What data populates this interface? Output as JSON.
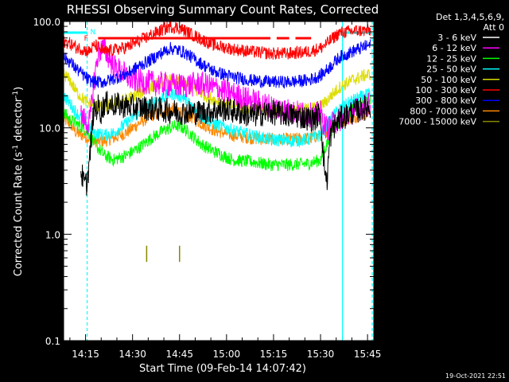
{
  "chart_data": {
    "type": "line",
    "title": "RHESSI Observing Summary Count Rates, Corrected",
    "xlabel": "Start Time (09-Feb-14 14:07:42)",
    "ylabel_main": "Corrected Count Rate (s",
    "ylabel_sup1": "-1",
    "ylabel_mid": " detector",
    "ylabel_sup2": "-1",
    "ylabel_end": ")",
    "y_scale": "log",
    "ylim": [
      0.1,
      100
    ],
    "xlim_minutes": [
      0,
      99
    ],
    "x_ticks": [
      {
        "m": 7,
        "label": "14:15"
      },
      {
        "m": 22,
        "label": "14:30"
      },
      {
        "m": 37,
        "label": "14:45"
      },
      {
        "m": 52,
        "label": "15:00"
      },
      {
        "m": 67,
        "label": "15:15"
      },
      {
        "m": 82,
        "label": "15:30"
      },
      {
        "m": 97,
        "label": "15:45"
      }
    ],
    "y_ticks": [
      {
        "v": 100,
        "label": "100.0"
      },
      {
        "v": 10,
        "label": "10.0"
      },
      {
        "v": 1,
        "label": "1.0"
      },
      {
        "v": 0.1,
        "label": "0.1"
      }
    ],
    "legend": {
      "header1": "Det 1,3,4,5,6,9,",
      "header2": "Att 0",
      "entries": [
        {
          "label": "3 - 6 keV",
          "color": "#ffffff"
        },
        {
          "label": "6 - 12 keV",
          "color": "#ff00ff"
        },
        {
          "label": "12 - 25 keV",
          "color": "#00ff00"
        },
        {
          "label": "25 - 50 keV",
          "color": "#00ffff"
        },
        {
          "label": "50 - 100 keV",
          "color": "#dddd00"
        },
        {
          "label": "100 - 300 keV",
          "color": "#ff0000"
        },
        {
          "label": "300 - 800 keV",
          "color": "#0000ff"
        },
        {
          "label": "800 - 7000 keV",
          "color": "#ff8800"
        },
        {
          "label": "7000 - 15000 keV",
          "color": "#888800"
        }
      ]
    },
    "flags": {
      "night_label": "N",
      "flare_label": "F"
    },
    "night_intervals_minutes": [
      [
        0,
        7.5
      ],
      [
        89,
        98.5
      ]
    ],
    "series": [
      {
        "name": "3 - 6 keV",
        "color": "#000000",
        "points": [
          [
            5.5,
            4
          ],
          [
            6.5,
            3
          ],
          [
            7.5,
            3
          ],
          [
            8.5,
            6
          ],
          [
            9.5,
            14
          ],
          [
            11,
            16
          ],
          [
            12,
            14
          ],
          [
            13,
            17
          ],
          [
            20,
            16
          ],
          [
            30,
            15
          ],
          [
            37,
            14
          ],
          [
            44,
            14
          ],
          [
            52,
            15
          ],
          [
            60,
            13
          ],
          [
            66,
            14
          ],
          [
            74,
            13
          ],
          [
            80,
            12
          ],
          [
            82,
            14
          ],
          [
            83,
            5
          ],
          [
            84,
            3
          ],
          [
            85,
            8
          ],
          [
            86,
            10
          ],
          [
            88,
            12
          ],
          [
            92,
            14
          ],
          [
            98,
            16
          ]
        ]
      },
      {
        "name": "6 - 12 keV",
        "color": "#ff00ff",
        "points": [
          [
            5.5,
            13
          ],
          [
            6.5,
            12
          ],
          [
            7.5,
            11
          ],
          [
            8.5,
            12
          ],
          [
            9.5,
            25
          ],
          [
            11,
            50
          ],
          [
            12,
            55
          ],
          [
            13,
            55
          ],
          [
            16,
            38
          ],
          [
            22,
            28
          ],
          [
            30,
            26
          ],
          [
            37,
            25
          ],
          [
            44,
            26
          ],
          [
            52,
            22
          ],
          [
            60,
            18
          ],
          [
            66,
            16
          ],
          [
            74,
            14
          ],
          [
            80,
            13
          ],
          [
            82,
            14
          ],
          [
            83,
            11
          ],
          [
            84,
            10
          ],
          [
            85,
            10
          ],
          [
            86,
            11
          ],
          [
            88,
            12
          ],
          [
            92,
            14
          ],
          [
            98,
            17
          ]
        ]
      },
      {
        "name": "12 - 25 keV",
        "color": "#00ff00",
        "points": [
          [
            0,
            14
          ],
          [
            2,
            12
          ],
          [
            4,
            11
          ],
          [
            6,
            10
          ],
          [
            8,
            9
          ],
          [
            10,
            7
          ],
          [
            13,
            5.5
          ],
          [
            16,
            5
          ],
          [
            20,
            5.5
          ],
          [
            24,
            6.5
          ],
          [
            28,
            8
          ],
          [
            32,
            9.5
          ],
          [
            34,
            10
          ],
          [
            36,
            10.5
          ],
          [
            38,
            10
          ],
          [
            40,
            9
          ],
          [
            44,
            7
          ],
          [
            48,
            6
          ],
          [
            54,
            5
          ],
          [
            60,
            4.8
          ],
          [
            66,
            4.5
          ],
          [
            72,
            4.5
          ],
          [
            78,
            4.6
          ],
          [
            82,
            5
          ],
          [
            84,
            7
          ],
          [
            86,
            10
          ],
          [
            88,
            11
          ],
          [
            90,
            13
          ],
          [
            92,
            15
          ],
          [
            96,
            18
          ],
          [
            98,
            19
          ]
        ]
      },
      {
        "name": "25 - 50 keV",
        "color": "#00ffff",
        "points": [
          [
            0,
            20
          ],
          [
            2,
            17
          ],
          [
            4,
            14
          ],
          [
            6,
            12
          ],
          [
            8,
            10
          ],
          [
            10,
            9
          ],
          [
            13,
            8.5
          ],
          [
            16,
            9
          ],
          [
            20,
            11
          ],
          [
            24,
            14
          ],
          [
            28,
            17
          ],
          [
            31,
            19
          ],
          [
            34,
            21
          ],
          [
            36,
            20.5
          ],
          [
            38,
            19.5
          ],
          [
            40,
            17
          ],
          [
            44,
            13
          ],
          [
            48,
            11
          ],
          [
            54,
            9.5
          ],
          [
            60,
            8.5
          ],
          [
            66,
            7.8
          ],
          [
            72,
            7.5
          ],
          [
            78,
            7.8
          ],
          [
            82,
            8.5
          ],
          [
            84,
            10.5
          ],
          [
            86,
            13
          ],
          [
            88,
            15
          ],
          [
            92,
            18
          ],
          [
            96,
            20
          ],
          [
            98,
            21
          ]
        ]
      },
      {
        "name": "50 - 100 keV",
        "color": "#dddd00",
        "points": [
          [
            0,
            32
          ],
          [
            2,
            28
          ],
          [
            4,
            22
          ],
          [
            6,
            19
          ],
          [
            8,
            17
          ],
          [
            10,
            16
          ],
          [
            13,
            16
          ],
          [
            16,
            17
          ],
          [
            20,
            18.5
          ],
          [
            24,
            21
          ],
          [
            28,
            24
          ],
          [
            31,
            27
          ],
          [
            34,
            28
          ],
          [
            36,
            27.5
          ],
          [
            38,
            26.5
          ],
          [
            40,
            24
          ],
          [
            44,
            21
          ],
          [
            48,
            18.5
          ],
          [
            54,
            16
          ],
          [
            60,
            15
          ],
          [
            66,
            14.5
          ],
          [
            72,
            14.5
          ],
          [
            78,
            15
          ],
          [
            82,
            16
          ],
          [
            84,
            18
          ],
          [
            86,
            21
          ],
          [
            88,
            24
          ],
          [
            92,
            28
          ],
          [
            96,
            31
          ],
          [
            98,
            32
          ]
        ]
      },
      {
        "name": "100 - 300 keV",
        "color": "#ff0000",
        "points": [
          [
            0,
            65
          ],
          [
            2,
            62
          ],
          [
            4,
            57
          ],
          [
            6,
            55
          ],
          [
            8,
            52
          ],
          [
            10,
            60
          ],
          [
            13,
            52
          ],
          [
            16,
            54
          ],
          [
            20,
            57
          ],
          [
            24,
            65
          ],
          [
            28,
            75
          ],
          [
            31,
            82
          ],
          [
            34,
            90
          ],
          [
            36,
            88
          ],
          [
            38,
            84
          ],
          [
            40,
            78
          ],
          [
            44,
            68
          ],
          [
            48,
            60
          ],
          [
            54,
            55
          ],
          [
            60,
            52
          ],
          [
            66,
            50
          ],
          [
            72,
            50
          ],
          [
            78,
            52
          ],
          [
            82,
            56
          ],
          [
            84,
            62
          ],
          [
            86,
            70
          ],
          [
            88,
            78
          ],
          [
            90,
            80
          ],
          [
            94,
            82
          ],
          [
            98,
            82
          ]
        ]
      },
      {
        "name": "300 - 800 keV",
        "color": "#0000ff",
        "points": [
          [
            0,
            46
          ],
          [
            2,
            42
          ],
          [
            4,
            36
          ],
          [
            6,
            32
          ],
          [
            8,
            28
          ],
          [
            10,
            27
          ],
          [
            13,
            27
          ],
          [
            16,
            29
          ],
          [
            20,
            32
          ],
          [
            24,
            38
          ],
          [
            28,
            44
          ],
          [
            31,
            50
          ],
          [
            34,
            56
          ],
          [
            36,
            54
          ],
          [
            38,
            52
          ],
          [
            40,
            48
          ],
          [
            44,
            40
          ],
          [
            48,
            34
          ],
          [
            54,
            30
          ],
          [
            60,
            28
          ],
          [
            66,
            27
          ],
          [
            72,
            27
          ],
          [
            78,
            28
          ],
          [
            82,
            31
          ],
          [
            84,
            35
          ],
          [
            86,
            40
          ],
          [
            88,
            46
          ],
          [
            92,
            52
          ],
          [
            96,
            58
          ],
          [
            98,
            60
          ]
        ]
      },
      {
        "name": "800 - 7000 keV",
        "color": "#ff8800",
        "points": [
          [
            0,
            12
          ],
          [
            2,
            11
          ],
          [
            4,
            9
          ],
          [
            6,
            8.5
          ],
          [
            8,
            8
          ],
          [
            10,
            7.5
          ],
          [
            13,
            7.5
          ],
          [
            16,
            8
          ],
          [
            20,
            9
          ],
          [
            24,
            11
          ],
          [
            28,
            13
          ],
          [
            31,
            14
          ],
          [
            34,
            15
          ],
          [
            36,
            15
          ],
          [
            38,
            14
          ],
          [
            40,
            13
          ],
          [
            44,
            11
          ],
          [
            48,
            9.5
          ],
          [
            54,
            8.5
          ],
          [
            60,
            8
          ],
          [
            66,
            7.8
          ],
          [
            72,
            7.8
          ],
          [
            78,
            8
          ],
          [
            82,
            8.5
          ],
          [
            84,
            9.5
          ],
          [
            86,
            10.5
          ],
          [
            88,
            11.5
          ],
          [
            92,
            12.5
          ],
          [
            96,
            13.5
          ],
          [
            98,
            14
          ]
        ]
      },
      {
        "name": "7000 - 15000 keV",
        "color": "#888800",
        "points": [
          [
            26.5,
            0.8
          ],
          [
            37,
            0.8
          ]
        ]
      }
    ],
    "flare_flag_segments_minutes": [
      [
        11,
        66
      ],
      [
        68,
        72
      ],
      [
        74,
        79
      ]
    ]
  },
  "timestamp": "19-Oct-2021 22:51"
}
